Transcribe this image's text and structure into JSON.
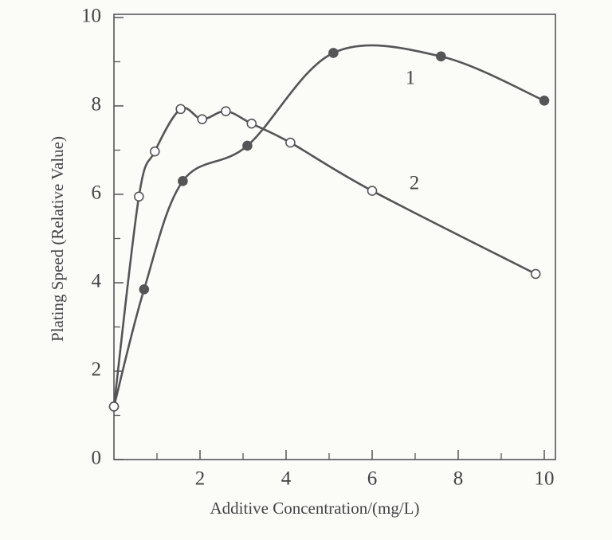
{
  "chart_data": {
    "type": "scatter",
    "x_label": "Additive Concentration/(mg/L)",
    "y_label": "Plating Speed (Relative Value)",
    "xlim": [
      0,
      10
    ],
    "ylim": [
      0,
      10
    ],
    "xticks": [
      2,
      4,
      6,
      8,
      10
    ],
    "x_minor_ticks": [
      1,
      3,
      5,
      7,
      9
    ],
    "yticks": [
      0,
      2,
      4,
      6,
      8,
      10
    ],
    "y_minor_ticks": [
      1,
      3,
      5,
      7,
      9
    ],
    "series": [
      {
        "name": "1",
        "color": "#555555",
        "marker": "filled",
        "x": [
          0,
          0.7,
          1.6,
          3.1,
          5.1,
          7.6,
          10
        ],
        "values": [
          1.2,
          3.85,
          6.3,
          7.1,
          9.2,
          9.12,
          8.12
        ]
      },
      {
        "name": "2",
        "color": "#555555",
        "marker": "open",
        "x": [
          0,
          0.58,
          0.95,
          1.55,
          2.05,
          2.6,
          3.2,
          4.1,
          6.0,
          9.8
        ],
        "values": [
          1.2,
          5.95,
          6.97,
          7.93,
          7.7,
          7.88,
          7.6,
          7.17,
          6.08,
          4.2
        ]
      }
    ]
  }
}
